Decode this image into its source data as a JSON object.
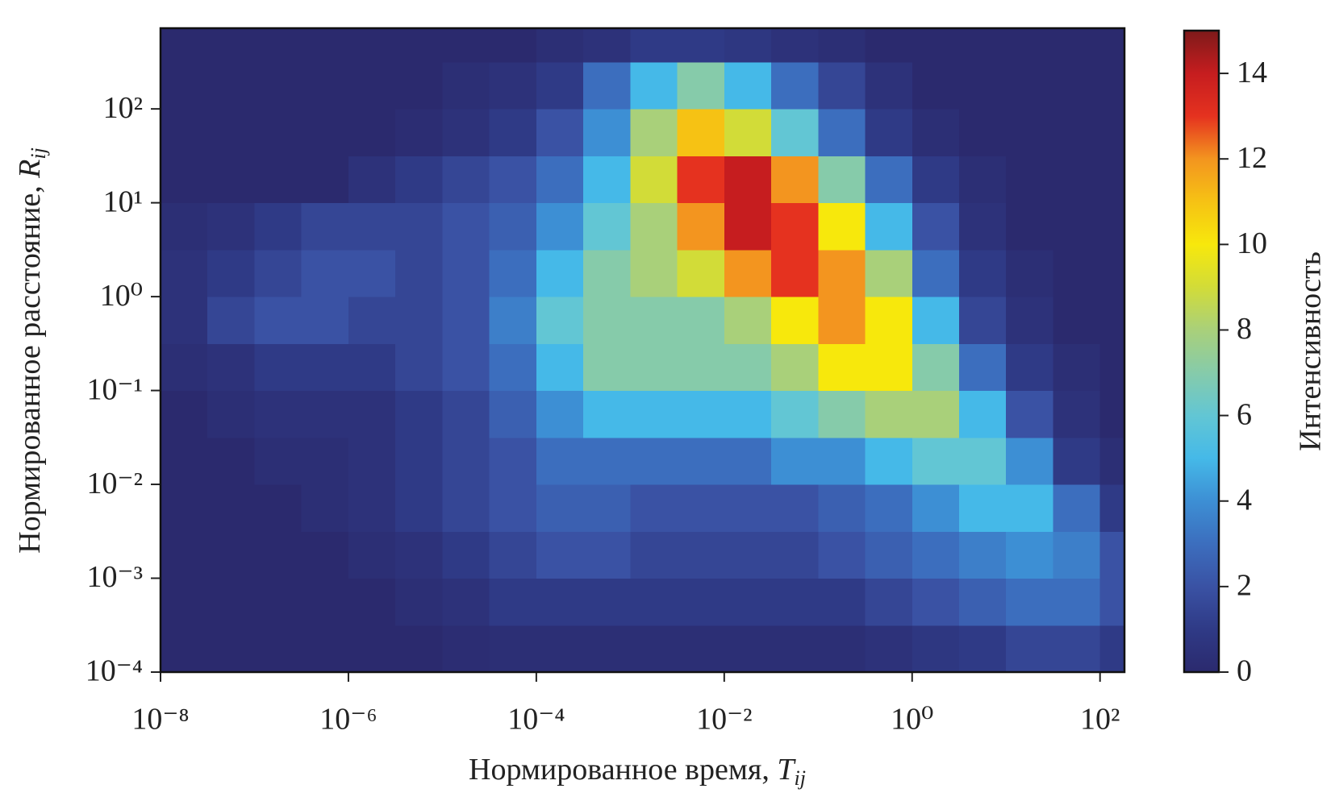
{
  "chart_data": {
    "type": "hist2d",
    "xlabel": {
      "text": "Нормированное время, ",
      "symbol": "T",
      "subscript": "ij"
    },
    "ylabel": {
      "text": "Нормированное расстояние, ",
      "symbol": "R",
      "subscript": "ij"
    },
    "colorbar_label": "Интенсивность",
    "log_x": true,
    "log_y": true,
    "xlim": [
      1e-08,
      182
    ],
    "ylim": [
      0.0001,
      724
    ],
    "xticks": [
      {
        "value": 1e-08,
        "label": "10⁻⁸"
      },
      {
        "value": 1e-06,
        "label": "10⁻⁶"
      },
      {
        "value": 0.0001,
        "label": "10⁻⁴"
      },
      {
        "value": 0.01,
        "label": "10⁻²"
      },
      {
        "value": 1,
        "label": "10⁰"
      },
      {
        "value": 100,
        "label": "10²"
      }
    ],
    "yticks": [
      {
        "value": 0.0001,
        "label": "10⁻⁴"
      },
      {
        "value": 0.001,
        "label": "10⁻³"
      },
      {
        "value": 0.01,
        "label": "10⁻²"
      },
      {
        "value": 0.1,
        "label": "10⁻¹"
      },
      {
        "value": 1,
        "label": "10⁰"
      },
      {
        "value": 10,
        "label": "10¹"
      },
      {
        "value": 100,
        "label": "10²"
      }
    ],
    "clim": [
      0,
      15
    ],
    "cticks": [
      0,
      2,
      4,
      6,
      8,
      10,
      12,
      14
    ],
    "colormap": [
      "#2b2a6e",
      "#2f3a86",
      "#3a52a4",
      "#3c6ebe",
      "#3d8fd4",
      "#45b9e8",
      "#62c6d4",
      "#86cbaa",
      "#a9d07a",
      "#d2dc38",
      "#f7e80c",
      "#f6c214",
      "#f3951f",
      "#e5321f",
      "#c61d1f",
      "#7e1a1a"
    ],
    "x_edges": [
      1e-08,
      3.162e-08,
      1e-07,
      3.162e-07,
      1e-06,
      3.162e-06,
      1e-05,
      3.162e-05,
      0.0001,
      0.0003162,
      0.001,
      0.003162,
      0.01,
      0.03162,
      0.1,
      0.3162,
      1,
      3.162,
      10,
      31.62,
      100,
      182
    ],
    "y_edges": [
      0.0001,
      0.0003162,
      0.001,
      0.003162,
      0.01,
      0.03162,
      0.1,
      0.3162,
      1,
      3.162,
      10,
      31.62,
      100,
      316.2,
      724
    ],
    "values": [
      [
        0,
        0,
        0,
        0,
        0,
        0,
        0.2,
        0.3,
        0.3,
        0.3,
        0.3,
        0.3,
        0.3,
        0.3,
        0.3,
        0.5,
        0.8,
        1,
        1.5,
        1.5,
        1
      ],
      [
        0,
        0,
        0,
        0,
        0,
        0.3,
        0.5,
        1,
        1,
        1,
        1,
        1,
        1,
        1,
        1,
        1.5,
        2,
        2.5,
        3,
        3,
        2
      ],
      [
        0,
        0,
        0,
        0,
        0.3,
        0.5,
        1,
        1.5,
        2,
        2,
        1.5,
        1.5,
        1.5,
        1.5,
        2,
        2.5,
        3,
        3.5,
        4,
        3.5,
        2
      ],
      [
        0,
        0,
        0,
        0.3,
        0.5,
        1,
        1.5,
        2,
        2.5,
        2.5,
        2,
        2,
        2,
        2,
        2.5,
        3,
        4,
        5,
        5,
        3,
        1
      ],
      [
        0,
        0,
        0.3,
        0.3,
        0.5,
        1,
        1.5,
        2,
        3,
        3,
        3,
        3,
        3,
        4,
        4,
        5,
        6,
        6,
        4,
        1,
        0.3
      ],
      [
        0,
        0.3,
        0.5,
        0.5,
        0.5,
        1,
        1.5,
        2.5,
        4,
        5,
        5,
        5,
        5,
        6,
        7,
        8,
        8,
        5,
        2,
        0.5,
        0
      ],
      [
        0.3,
        0.5,
        1,
        1,
        1,
        1.5,
        2,
        3,
        5,
        7,
        7,
        7,
        7,
        8,
        10,
        10,
        7,
        3,
        1,
        0.3,
        0
      ],
      [
        0.5,
        1.5,
        2,
        2,
        1.5,
        1.5,
        2,
        3.5,
        6,
        7,
        7,
        7,
        8,
        10,
        12,
        10,
        5,
        1.5,
        0.5,
        0,
        0
      ],
      [
        0.5,
        1,
        1.5,
        2,
        2,
        1.5,
        2,
        3,
        5,
        7,
        8,
        9,
        12,
        13,
        12,
        8,
        3,
        1,
        0.3,
        0,
        0
      ],
      [
        0.3,
        0.5,
        1,
        1.5,
        1.5,
        1.5,
        2,
        2.5,
        4,
        6,
        8,
        12,
        14,
        13,
        10,
        5,
        2,
        0.5,
        0,
        0,
        0
      ],
      [
        0,
        0,
        0,
        0,
        0.5,
        1,
        1.5,
        2,
        3,
        5,
        9,
        13,
        14,
        12,
        7,
        3,
        1,
        0.3,
        0,
        0,
        0
      ],
      [
        0,
        0,
        0,
        0,
        0,
        0.2,
        0.5,
        1,
        2,
        4,
        8,
        11,
        9,
        6,
        3,
        1,
        0.3,
        0,
        0,
        0,
        0
      ],
      [
        0,
        0,
        0,
        0,
        0,
        0,
        0.3,
        0.5,
        1,
        3,
        5,
        7,
        5,
        3,
        1.5,
        0.5,
        0,
        0,
        0,
        0,
        0
      ],
      [
        0,
        0,
        0,
        0,
        0,
        0,
        0,
        0,
        0.3,
        0.5,
        1,
        1,
        0.8,
        0.5,
        0.3,
        0,
        0,
        0,
        0,
        0,
        0
      ]
    ]
  }
}
